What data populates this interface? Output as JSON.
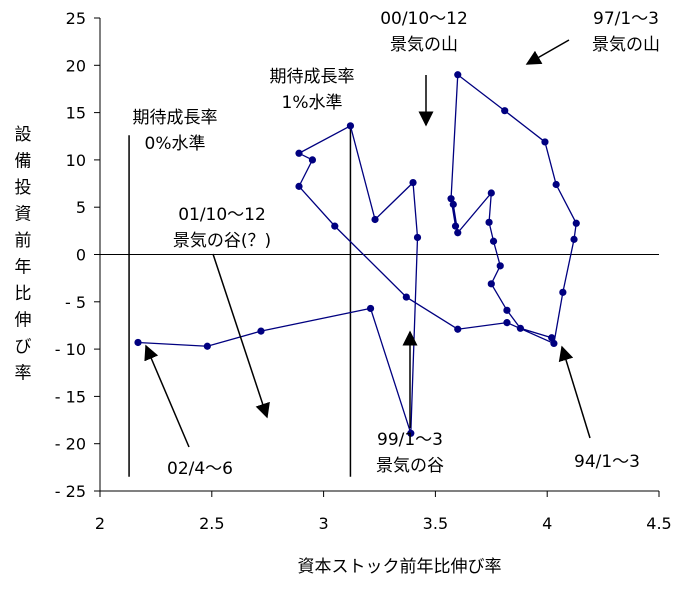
{
  "chart_data": {
    "type": "line",
    "xlabel": "資本ストック前年比伸び率",
    "ylabel": "設備投資前年比伸び率",
    "xlim": [
      2,
      4.5
    ],
    "ylim": [
      -25,
      25
    ],
    "x_ticks": [
      2,
      2.5,
      3,
      3.5,
      4,
      4.5
    ],
    "x_tick_labels": [
      "2",
      "2.5",
      "3",
      "3.5",
      "4",
      "4.5"
    ],
    "y_ticks": [
      25,
      20,
      15,
      10,
      5,
      0,
      -5,
      -10,
      -15,
      -20,
      -25
    ],
    "y_tick_labels": [
      "25",
      "20",
      "15",
      "10",
      "5",
      "0",
      "- 5",
      "- 10",
      "- 15",
      "- 20",
      "- 25"
    ],
    "grid": false,
    "line_color": "#000080",
    "series": [
      {
        "x": [
          4.02,
          3.88,
          3.82,
          3.75,
          3.79,
          3.76,
          3.74,
          3.75,
          3.6,
          3.58,
          3.59,
          3.57,
          3.6,
          3.81,
          3.99,
          4.04,
          4.13,
          4.12,
          4.07,
          4.03,
          3.82,
          3.6,
          3.37,
          3.05,
          2.89,
          2.95,
          2.89,
          3.12,
          3.23,
          3.4,
          3.42,
          3.39,
          3.21,
          2.72,
          2.48,
          2.17
        ],
        "y": [
          -8.8,
          -7.8,
          -5.9,
          -3.1,
          -1.2,
          1.4,
          3.4,
          6.5,
          2.3,
          5.3,
          3.0,
          5.9,
          19.0,
          15.2,
          11.9,
          7.4,
          3.3,
          1.6,
          -4.0,
          -9.4,
          -7.2,
          -7.9,
          -4.5,
          3.0,
          7.2,
          10.0,
          10.7,
          13.6,
          3.7,
          7.6,
          1.8,
          -18.9,
          -5.7,
          -8.1,
          -9.7,
          -9.3
        ]
      }
    ],
    "vertical_lines": [
      {
        "x": 2.13,
        "y_from": -23.5,
        "y_to": 12.6
      },
      {
        "x": 3.12,
        "y_from": -23.5,
        "y_to": 13.7
      }
    ],
    "annotations": [
      {
        "lines": [
          "期待成長率",
          "0%水準"
        ],
        "ref_x": 2.13,
        "ref_y": 12.6
      },
      {
        "lines": [
          "期待成長率",
          "1%水準"
        ],
        "ref_x": 3.12,
        "ref_y": 13.7
      },
      {
        "lines": [
          "00/10～12",
          "景気の山"
        ],
        "ref_x": 3.42,
        "ref_y": 13.6
      },
      {
        "lines": [
          "97/1～3",
          "景気の山"
        ],
        "ref_x": 3.81,
        "ref_y": 19.0
      },
      {
        "lines": [
          "01/10～12",
          "景気の谷(？)"
        ],
        "ref_x": 2.71,
        "ref_y": -17.0
      },
      {
        "lines": [
          "02/4～6"
        ],
        "ref_x": 2.17,
        "ref_y": -9.3
      },
      {
        "lines": [
          "99/1～3",
          "景気の谷"
        ],
        "ref_x": 3.37,
        "ref_y": -7.9
      },
      {
        "lines": [
          "94/1～3"
        ],
        "ref_x": 4.02,
        "ref_y": -9.4
      }
    ]
  }
}
